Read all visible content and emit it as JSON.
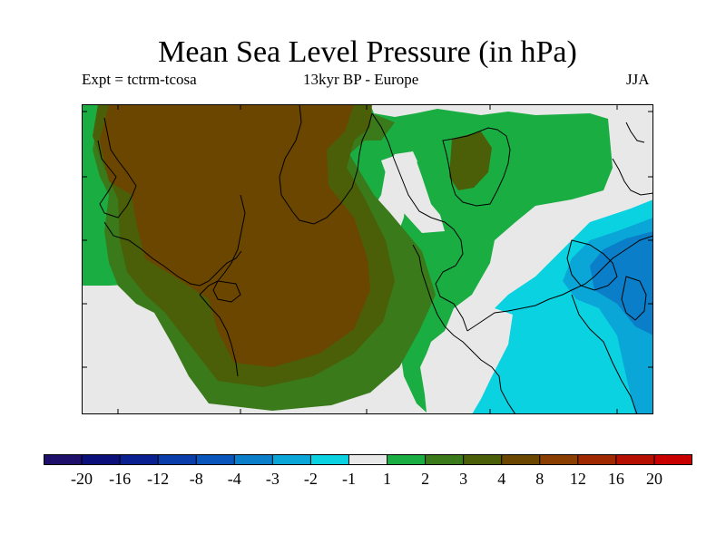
{
  "header": {
    "title": "Mean Sea Level Pressure (in hPa)",
    "experiment": "Expt = tctrm-tcosa",
    "period": "13kyr BP - Europe",
    "season": "JJA"
  },
  "legend": {
    "colors": [
      "#1e0f6a",
      "#0a0f7a",
      "#0a2090",
      "#0a3caa",
      "#0a55bb",
      "#0a7ec8",
      "#0aa6d8",
      "#0ad2e0",
      "#e8e8e8",
      "#1aad42",
      "#3a7a1a",
      "#4b5e08",
      "#6b4600",
      "#8a3e00",
      "#a02800",
      "#b40f00",
      "#c80000"
    ],
    "labels": [
      "-20",
      "-16",
      "-12",
      "-8",
      "-4",
      "-3",
      "-2",
      "-1",
      "1",
      "2",
      "3",
      "4",
      "8",
      "12",
      "16",
      "20"
    ]
  },
  "map": {
    "colors": {
      "high_brown": "#6b4600",
      "mid_olive": "#4b5e08",
      "green_dark": "#3a7a1a",
      "green": "#1aad42",
      "neutral": "#e8e8e8",
      "cyan": "#0ad2e0",
      "sky": "#0aa6d8",
      "blue": "#0a7ec8",
      "outline": "#000000"
    }
  }
}
